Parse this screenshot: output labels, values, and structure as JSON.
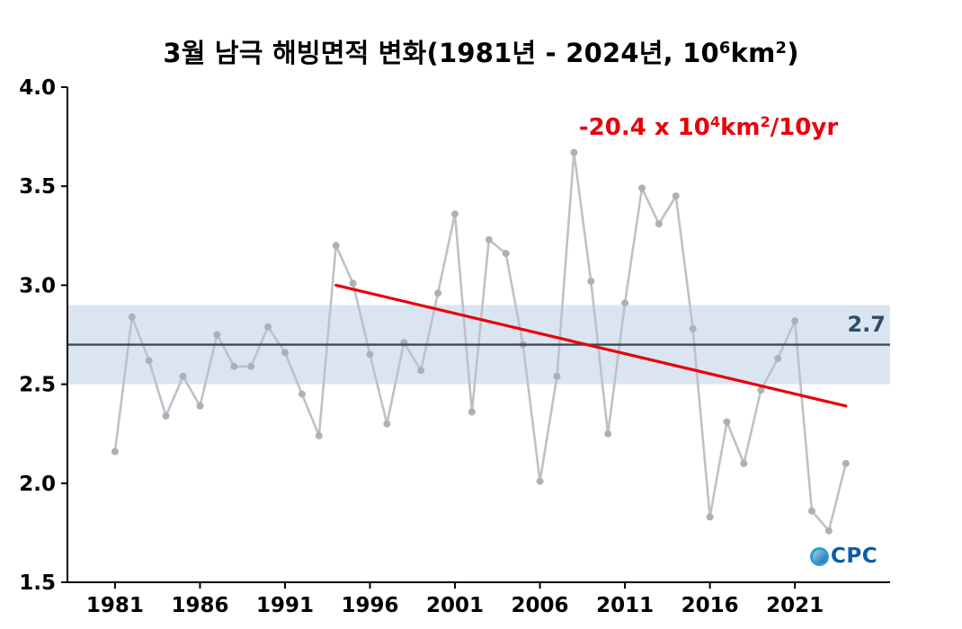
{
  "title": {
    "part1": "3월 남극 해빙면적 변화(1981년 - 2024년, 10",
    "sup1": "6",
    "part2": "km",
    "sup2": "2",
    "part3": ")"
  },
  "annotation": {
    "part1": "-20.4 x 10",
    "sup1": "4",
    "part2": "km",
    "sup2": "2",
    "part3": "/10yr",
    "color": "#e8000b"
  },
  "mean_label": "2.7",
  "logo": {
    "text": "CPC",
    "color": "#0d5ca8"
  },
  "chart_data": {
    "type": "line",
    "title": "3월 남극 해빙면적 변화(1981년 - 2024년, 10^6 km^2)",
    "xlabel": "",
    "ylabel": "",
    "x": [
      1981,
      1982,
      1983,
      1984,
      1985,
      1986,
      1987,
      1988,
      1989,
      1990,
      1991,
      1992,
      1993,
      1994,
      1995,
      1996,
      1997,
      1998,
      1999,
      2000,
      2001,
      2002,
      2003,
      2004,
      2005,
      2006,
      2007,
      2008,
      2009,
      2010,
      2011,
      2012,
      2013,
      2014,
      2015,
      2016,
      2017,
      2018,
      2019,
      2020,
      2021,
      2022,
      2023,
      2024
    ],
    "series": [
      {
        "name": "march_antarctic_sea_ice_area",
        "values": [
          2.16,
          2.84,
          2.62,
          2.34,
          2.54,
          2.39,
          2.75,
          2.59,
          2.59,
          2.79,
          2.66,
          2.45,
          2.24,
          3.2,
          3.01,
          2.65,
          2.3,
          2.71,
          2.57,
          2.96,
          3.36,
          2.36,
          3.23,
          3.16,
          2.7,
          2.01,
          2.54,
          3.67,
          3.02,
          2.25,
          2.91,
          3.49,
          3.31,
          3.45,
          2.78,
          1.83,
          2.31,
          2.1,
          2.47,
          2.63,
          2.82,
          1.86,
          1.76,
          2.1
        ]
      }
    ],
    "mean": 2.7,
    "band": [
      2.5,
      2.9
    ],
    "trend": {
      "start": {
        "x": 1994,
        "y": 3.0
      },
      "end": {
        "x": 2024,
        "y": 2.39
      },
      "slope_per_decade": -0.204,
      "label": "-20.4 x 10^4 km^2/10yr"
    },
    "xticks": [
      1981,
      1986,
      1991,
      1996,
      2001,
      2006,
      2011,
      2016,
      2021
    ],
    "yticks": [
      1.5,
      2.0,
      2.5,
      3.0,
      3.5,
      4.0
    ],
    "xlim": [
      1978.2,
      2026.6
    ],
    "ylim": [
      1.5,
      4.0
    ],
    "grid": false,
    "legend": "none",
    "colors": {
      "line": "#bcc2c7",
      "marker": "#aab2b9",
      "trend": "#e8000b",
      "mean": "#3a4a58",
      "band": "#dbe5f1",
      "mean_label": "#2e4d68"
    }
  }
}
